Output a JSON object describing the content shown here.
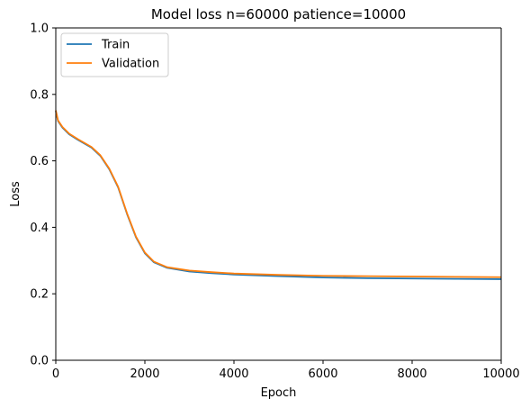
{
  "chart_data": {
    "type": "line",
    "title": "Model loss n=60000 patience=10000",
    "xlabel": "Epoch",
    "ylabel": "Loss",
    "xlim": [
      0,
      10000
    ],
    "ylim": [
      0.0,
      1.0
    ],
    "xticks": [
      0,
      2000,
      4000,
      6000,
      8000,
      10000
    ],
    "xtick_labels": [
      "0",
      "2000",
      "4000",
      "6000",
      "8000",
      "10000"
    ],
    "yticks": [
      0.0,
      0.2,
      0.4,
      0.6,
      0.8,
      1.0
    ],
    "ytick_labels": [
      "0.0",
      "0.2",
      "0.4",
      "0.6",
      "0.8",
      "1.0"
    ],
    "grid": false,
    "legend_position": "top-left",
    "series": [
      {
        "name": "Train",
        "color": "#1f77b4",
        "x": [
          0,
          50,
          150,
          300,
          500,
          800,
          1000,
          1200,
          1400,
          1600,
          1800,
          2000,
          2200,
          2500,
          3000,
          3500,
          4000,
          5000,
          6000,
          7000,
          8000,
          9000,
          10000
        ],
        "y": [
          0.75,
          0.72,
          0.7,
          0.68,
          0.663,
          0.64,
          0.615,
          0.575,
          0.52,
          0.44,
          0.37,
          0.322,
          0.295,
          0.278,
          0.267,
          0.262,
          0.258,
          0.253,
          0.249,
          0.247,
          0.246,
          0.245,
          0.244
        ]
      },
      {
        "name": "Validation",
        "color": "#ff7f0e",
        "x": [
          0,
          50,
          150,
          300,
          500,
          800,
          1000,
          1200,
          1400,
          1600,
          1800,
          2000,
          2200,
          2500,
          3000,
          3500,
          4000,
          5000,
          6000,
          7000,
          8000,
          9000,
          10000
        ],
        "y": [
          0.752,
          0.722,
          0.702,
          0.682,
          0.665,
          0.642,
          0.617,
          0.577,
          0.522,
          0.442,
          0.372,
          0.324,
          0.297,
          0.28,
          0.27,
          0.265,
          0.261,
          0.257,
          0.254,
          0.253,
          0.252,
          0.251,
          0.25
        ]
      }
    ]
  }
}
